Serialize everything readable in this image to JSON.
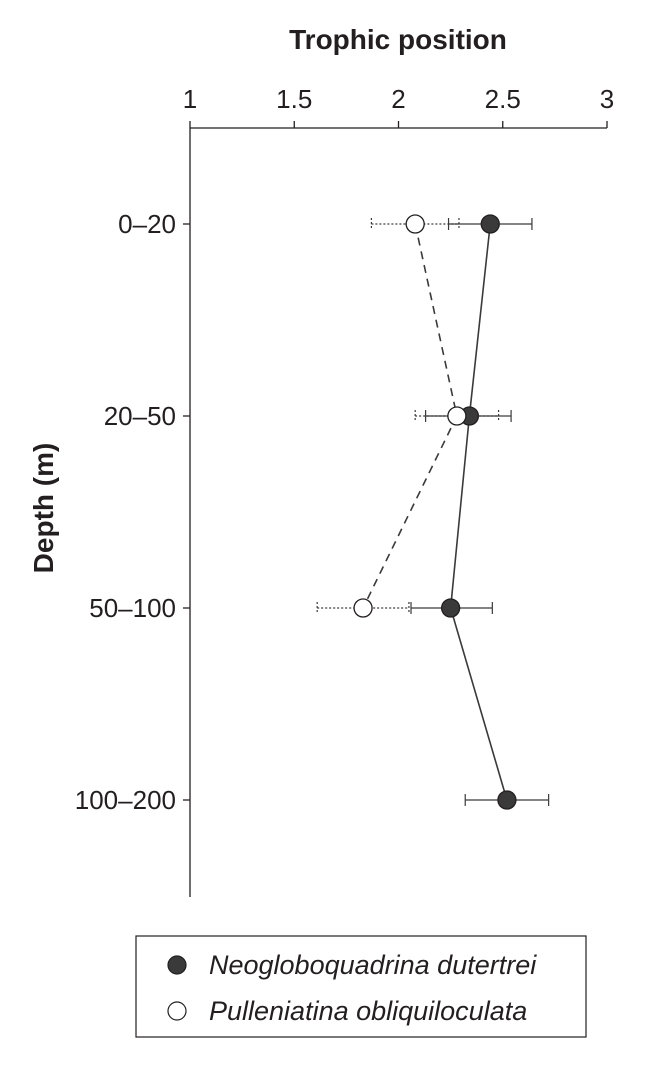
{
  "chart_data": {
    "type": "scatter",
    "orientation": "horizontal-depth-profile",
    "xlabel": "Trophic position",
    "ylabel": "Depth (m)",
    "xlim": [
      1,
      3
    ],
    "x_ticks": [
      "1",
      "1.5",
      "2",
      "2.5",
      "3"
    ],
    "x_tick_values": [
      1,
      1.5,
      2,
      2.5,
      3
    ],
    "categories": [
      "0–20",
      "20–50",
      "50–100",
      "100–200"
    ],
    "grid": false,
    "legend_position": "bottom",
    "series": [
      {
        "name": "Neogloboquadrina dutertrei",
        "marker": "filled-circle",
        "line": "solid",
        "color": "#3a3a3a",
        "values": [
          2.44,
          2.34,
          2.25,
          2.52
        ],
        "err_low": [
          2.24,
          2.13,
          2.06,
          2.32
        ],
        "err_high": [
          2.64,
          2.54,
          2.45,
          2.72
        ]
      },
      {
        "name": "Pulleniatina obliquiloculata",
        "marker": "open-circle",
        "line": "dashed",
        "color": "#3a3a3a",
        "values": [
          2.08,
          2.28,
          1.83,
          null
        ],
        "err_low": [
          1.87,
          2.08,
          1.61,
          null
        ],
        "err_high": [
          2.29,
          2.48,
          2.05,
          null
        ]
      }
    ]
  }
}
